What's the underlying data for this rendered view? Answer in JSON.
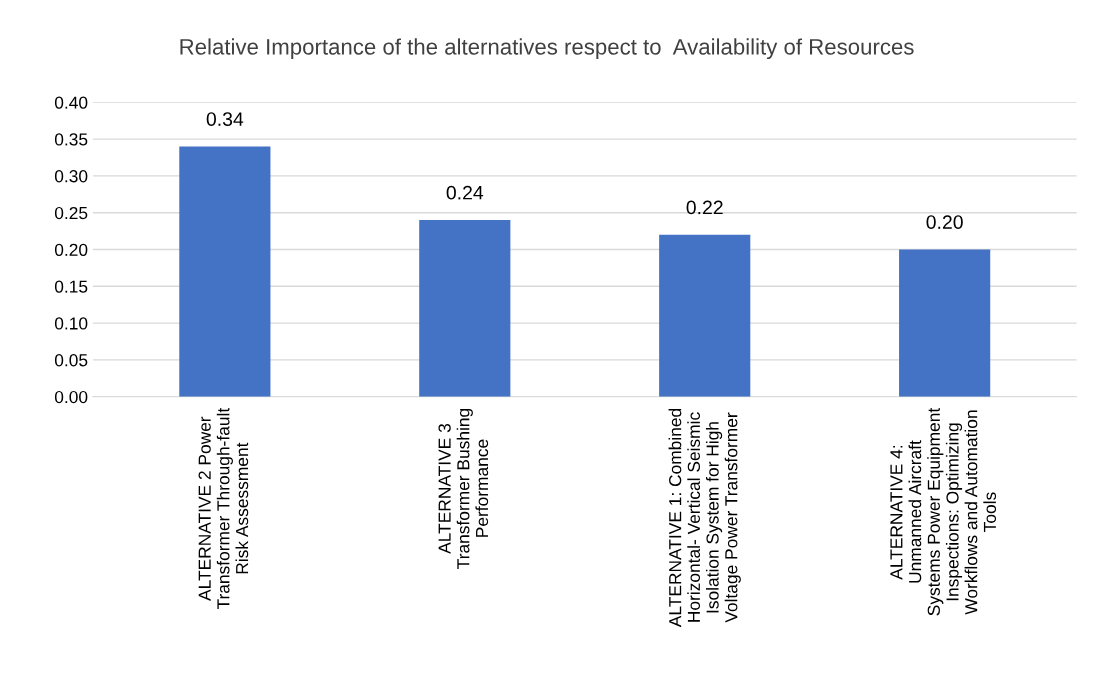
{
  "chart_data": {
    "type": "bar",
    "title": "Relative Importance of the alternatives respect to  Availability of Resources",
    "categories": [
      "ALTERNATIVE 2 Power\nTransformer Through-fault\nRisk Assessment",
      "ALTERNATIVE 3\nTransformer Bushing\nPerformance",
      "ALTERNATIVE 1: Combined\nHorizontal- Vertical Seismic\nIsolation System for High\nVoltage Power Transformer",
      "ALTERNATIVE 4:\nUnmanned Aircraft\nSystems Power Equipment\nInspections: Optimizing\nWorkflows and Automation\nTools"
    ],
    "values": [
      0.34,
      0.24,
      0.22,
      0.2
    ],
    "value_labels": [
      "0.34",
      "0.24",
      "0.22",
      "0.20"
    ],
    "color": "#4472c4",
    "ylim": [
      0,
      0.4
    ],
    "yticks": [
      {
        "value": 0,
        "label": "0.00"
      },
      {
        "value": 0.05,
        "label": "0.05"
      },
      {
        "value": 0.1,
        "label": "0.10"
      },
      {
        "value": 0.15,
        "label": "0.15"
      },
      {
        "value": 0.2,
        "label": "0.20"
      },
      {
        "value": 0.25,
        "label": "0.25"
      },
      {
        "value": 0.3,
        "label": "0.30"
      },
      {
        "value": 0.35,
        "label": "0.35"
      },
      {
        "value": 0.4,
        "label": "0.40"
      }
    ],
    "grid": "y"
  }
}
